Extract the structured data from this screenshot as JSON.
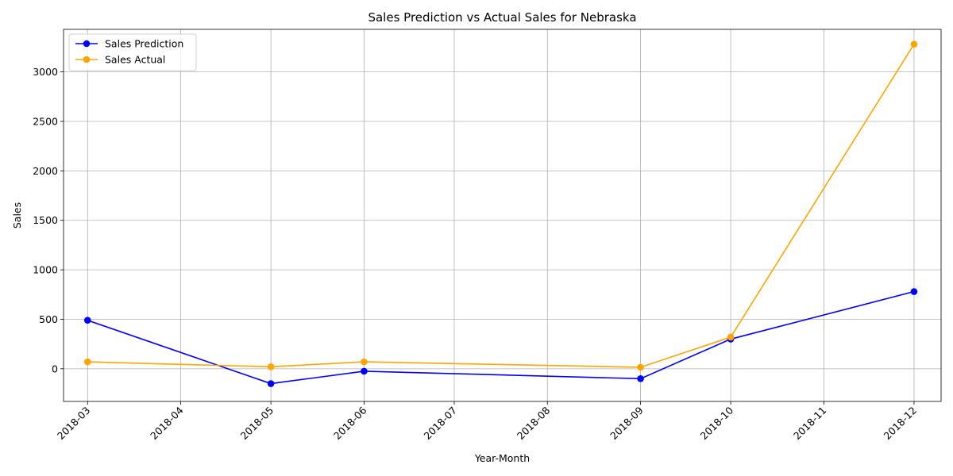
{
  "chart_data": {
    "type": "line",
    "title": "Sales Prediction vs Actual Sales for Nebraska",
    "xlabel": "Year-Month",
    "ylabel": "Sales",
    "x_ticks": [
      "2018-03",
      "2018-04",
      "2018-05",
      "2018-06",
      "2018-07",
      "2018-08",
      "2018-09",
      "2018-10",
      "2018-11",
      "2018-12"
    ],
    "x": [
      "2018-03",
      "2018-05",
      "2018-06",
      "2018-09",
      "2018-10",
      "2018-12"
    ],
    "xlim": [
      "2018-02-21",
      "2018-12-10"
    ],
    "y_ticks": [
      0,
      500,
      1000,
      1500,
      2000,
      2500,
      3000
    ],
    "ylim": [
      -330,
      3430
    ],
    "grid": true,
    "legend_position": "top-left",
    "series": [
      {
        "name": "Sales Prediction",
        "color": "#0000ff",
        "values": [
          490,
          -150,
          -25,
          -100,
          300,
          780
        ]
      },
      {
        "name": "Sales Actual",
        "color": "#ffa500",
        "values": [
          70,
          20,
          70,
          15,
          320,
          3280
        ]
      }
    ]
  }
}
